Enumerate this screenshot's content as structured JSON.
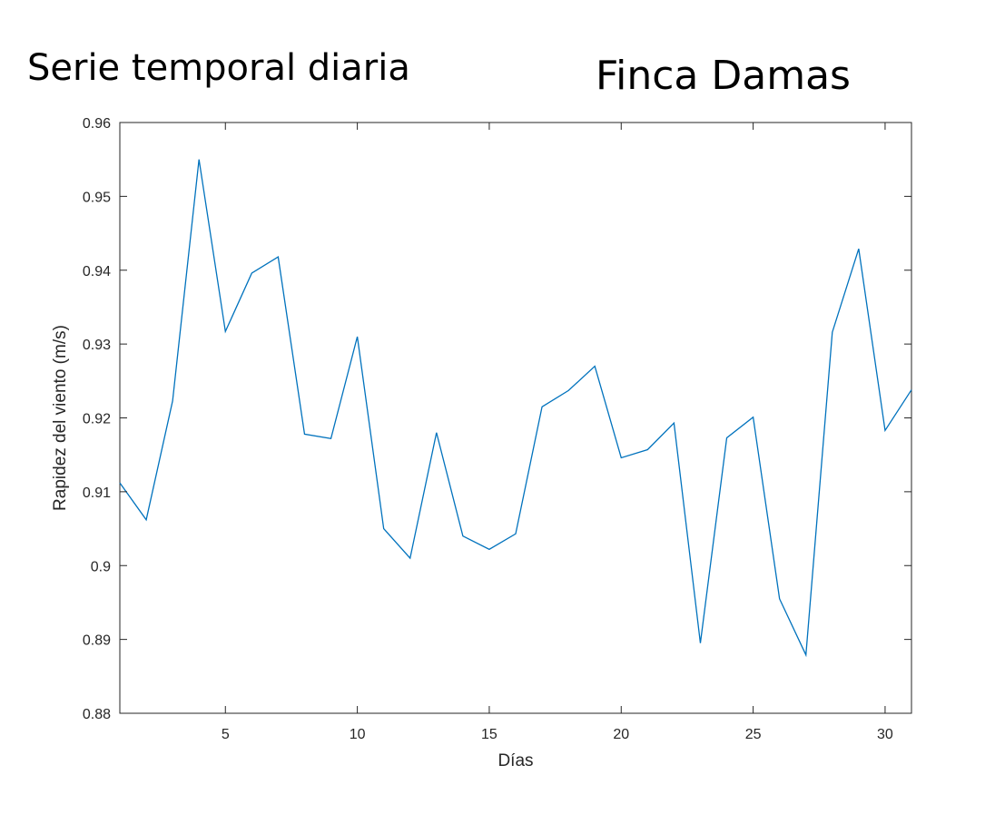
{
  "header": {
    "title_left": "Serie temporal diaria",
    "title_right": "Finca Damas"
  },
  "chart_data": {
    "type": "line",
    "xlabel": "Días",
    "ylabel": "Rapidez del viento (m/s)",
    "xlim": [
      1,
      31
    ],
    "ylim": [
      0.88,
      0.96
    ],
    "x_ticks": [
      5,
      10,
      15,
      20,
      25,
      30
    ],
    "y_ticks": [
      0.88,
      0.89,
      0.9,
      0.91,
      0.92,
      0.93,
      0.94,
      0.95,
      0.96
    ],
    "y_tick_labels": [
      "0.88",
      "0.89",
      "0.9",
      "0.91",
      "0.92",
      "0.93",
      "0.94",
      "0.95",
      "0.96"
    ],
    "grid": false,
    "series": [
      {
        "color": "#0072BD",
        "x": [
          1,
          2,
          3,
          4,
          5,
          6,
          7,
          8,
          9,
          10,
          11,
          12,
          13,
          14,
          15,
          16,
          17,
          18,
          19,
          20,
          21,
          22,
          23,
          24,
          25,
          26,
          27,
          28,
          29,
          30,
          31
        ],
        "values": [
          0.9112,
          0.9062,
          0.9223,
          0.955,
          0.9317,
          0.9396,
          0.9418,
          0.9178,
          0.9172,
          0.931,
          0.905,
          0.901,
          0.918,
          0.904,
          0.9022,
          0.9043,
          0.9215,
          0.9237,
          0.927,
          0.9146,
          0.9157,
          0.9193,
          0.8895,
          0.9173,
          0.9201,
          0.8955,
          0.8879,
          0.9316,
          0.9429,
          0.9183,
          0.9238
        ]
      }
    ]
  }
}
